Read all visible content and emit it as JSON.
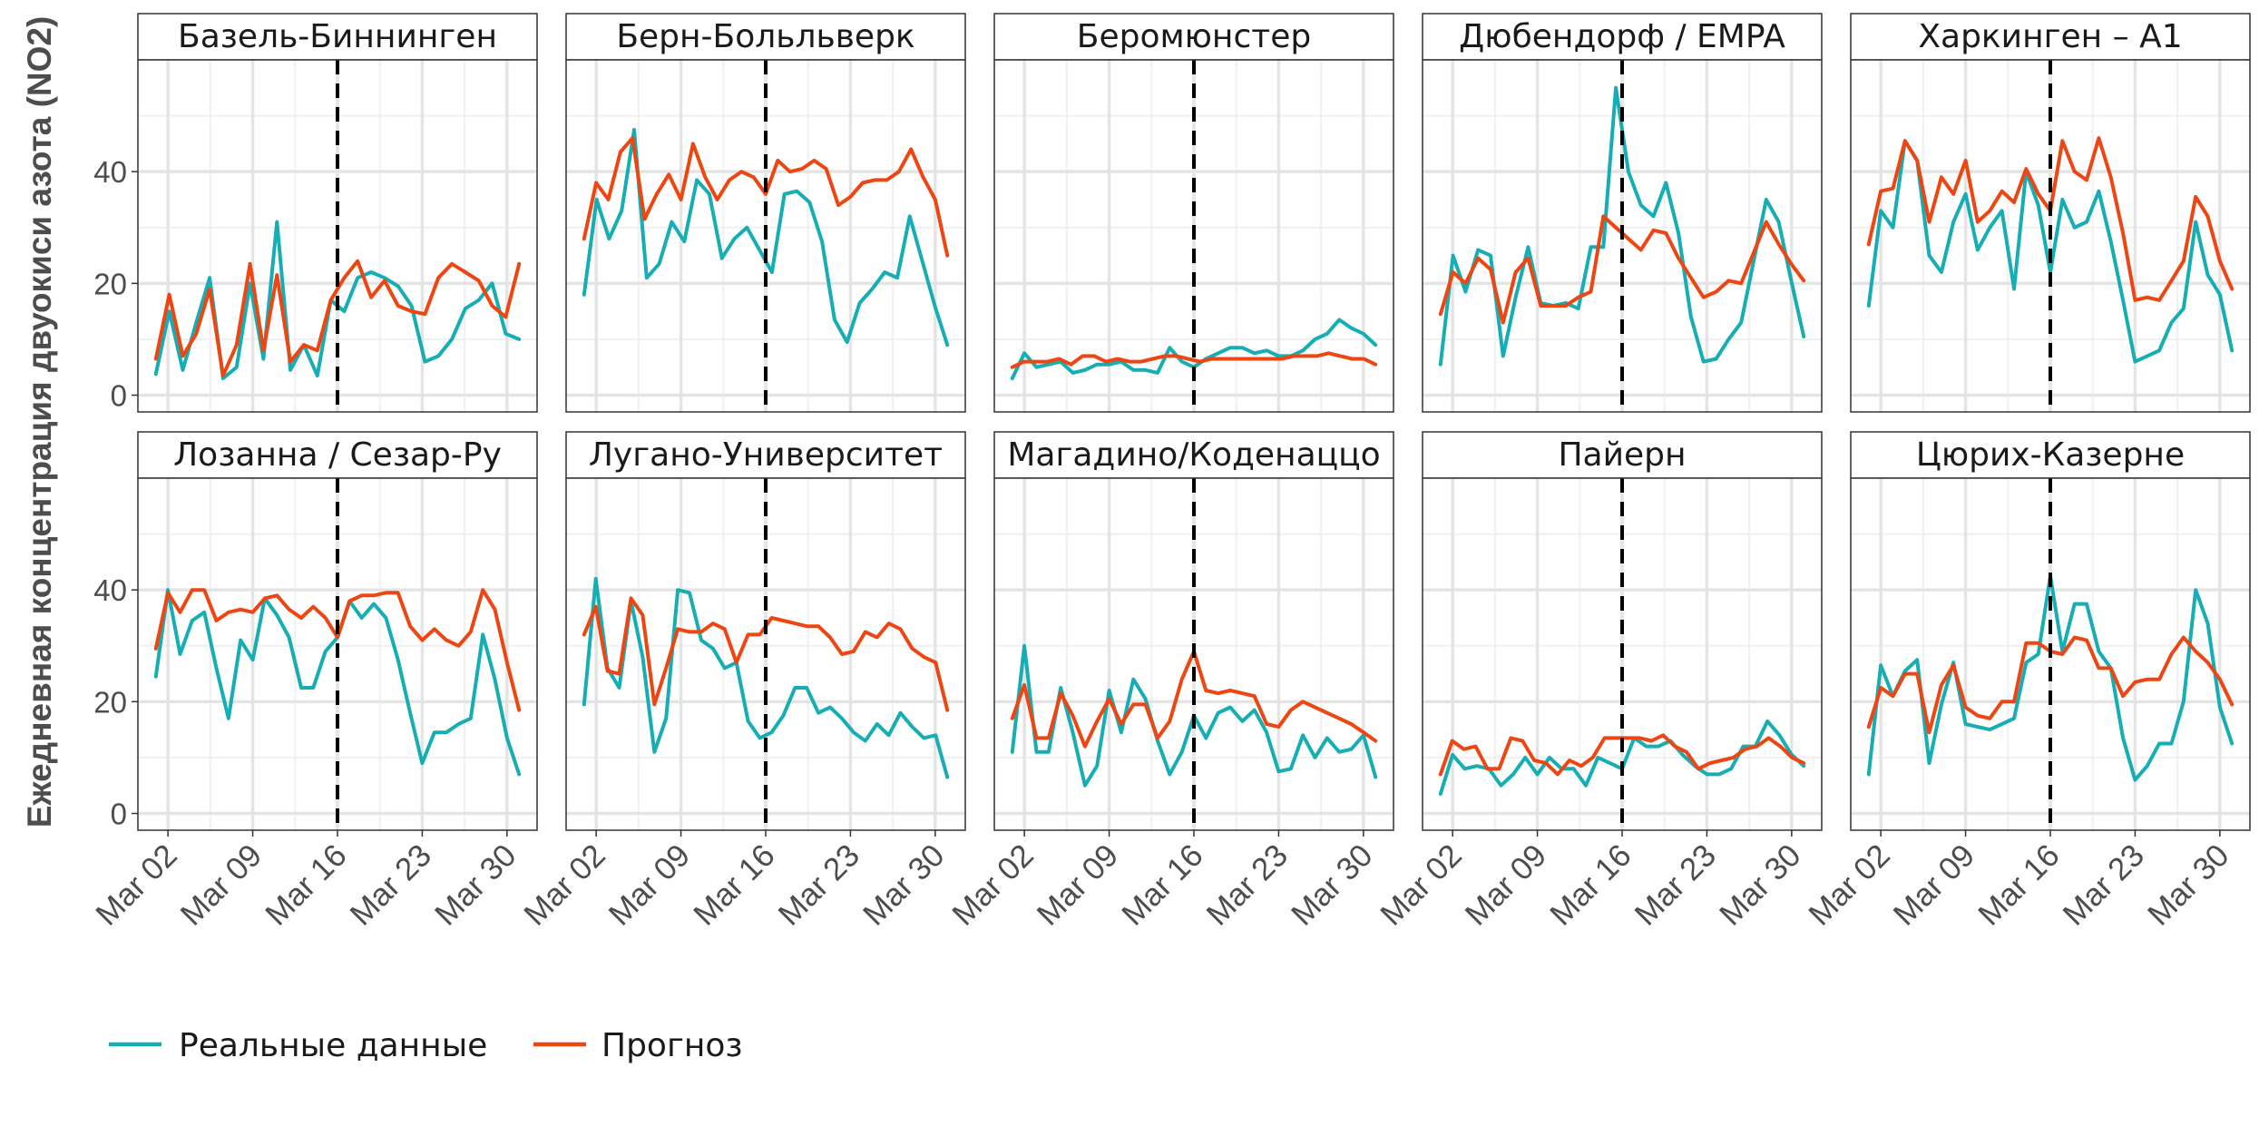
{
  "chart_data": {
    "type": "line",
    "ylabel": "Ежедневная концентрация двуокиси азота (NO2)",
    "xlabel": "",
    "x_dates": [
      "Mar 01",
      "Mar 02",
      "Mar 03",
      "Mar 04",
      "Mar 05",
      "Mar 06",
      "Mar 07",
      "Mar 08",
      "Mar 09",
      "Mar 10",
      "Mar 11",
      "Mar 12",
      "Mar 13",
      "Mar 14",
      "Mar 15",
      "Mar 16",
      "Mar 17",
      "Mar 18",
      "Mar 19",
      "Mar 20",
      "Mar 21",
      "Mar 22",
      "Mar 23",
      "Mar 24",
      "Mar 25",
      "Mar 26",
      "Mar 27",
      "Mar 28",
      "Mar 29",
      "Mar 30",
      "Mar 31"
    ],
    "x_ticks": [
      "Mar 02",
      "Mar 09",
      "Mar 16",
      "Mar 23",
      "Mar 30"
    ],
    "x_tick_index": [
      1,
      8,
      15,
      22,
      29
    ],
    "y_ticks": [
      0,
      20,
      40
    ],
    "ylim": [
      -3,
      60
    ],
    "vline_index": 15,
    "series_colors": {
      "actual": "#16aeb4",
      "forecast": "#ee4612"
    },
    "legend": [
      {
        "key": "actual",
        "label": "Реальные данные"
      },
      {
        "key": "forecast",
        "label": "Прогноз"
      }
    ],
    "panels": [
      {
        "title": "Базель-Биннинген",
        "actual": [
          3.8,
          15,
          4.5,
          13,
          21,
          3,
          5,
          20,
          6.5,
          31,
          4.5,
          9,
          3.5,
          17,
          15,
          21,
          22,
          21,
          19.5,
          16,
          6,
          7,
          10,
          15.5,
          17,
          20,
          11,
          10
        ],
        "forecast": [
          6.5,
          18,
          7,
          11,
          19,
          3.5,
          9,
          23.5,
          8,
          21.5,
          6,
          9,
          8,
          17,
          21,
          24,
          17.5,
          20.5,
          16,
          15,
          14.5,
          21,
          23.5,
          22,
          20.5,
          16,
          14,
          23.5
        ]
      },
      {
        "title": "Берн-Больльверк",
        "actual": [
          18,
          35,
          28,
          33,
          47.5,
          21,
          23.5,
          31,
          27.5,
          38.5,
          36,
          24.5,
          28,
          30,
          26,
          22,
          36,
          36.5,
          34.5,
          27.5,
          13.5,
          9.5,
          16.5,
          19,
          22,
          21,
          32,
          24,
          16,
          9
        ],
        "forecast": [
          28,
          38,
          35,
          43.5,
          46,
          31.5,
          36,
          39.5,
          35,
          45,
          39,
          35,
          38.5,
          40,
          39,
          36,
          42,
          40,
          40.5,
          42,
          40.5,
          34,
          35.5,
          38,
          38.5,
          38.5,
          40,
          44,
          39,
          35,
          25
        ]
      },
      {
        "title": "Беромюнстер",
        "actual": [
          3,
          7.5,
          5,
          5.5,
          6,
          4,
          4.5,
          5.5,
          5.5,
          6,
          4.5,
          4.5,
          4,
          8.5,
          6,
          5,
          6.5,
          7.5,
          8.5,
          8.5,
          7.5,
          8,
          7,
          7,
          8,
          10,
          11,
          13.5,
          12,
          11,
          9
        ],
        "forecast": [
          5,
          6,
          6,
          6,
          6.5,
          5.5,
          7,
          7,
          6,
          6.5,
          6,
          6,
          6.5,
          7,
          7,
          6.5,
          6,
          6.5,
          6.5,
          6.5,
          6.5,
          6.5,
          6.5,
          6.5,
          7,
          7,
          7,
          7.5,
          7,
          6.5,
          6.5,
          5.5
        ]
      },
      {
        "title": "Дюбендорф / EMPA",
        "actual": [
          5.5,
          25,
          18.5,
          26,
          25,
          7,
          17.5,
          26.5,
          16.5,
          16,
          16.5,
          15.5,
          26.5,
          26.5,
          55,
          40,
          34,
          32,
          38,
          29,
          14,
          6,
          6.5,
          10,
          13,
          24,
          35,
          31,
          20.5,
          10.5
        ],
        "forecast": [
          14.5,
          22,
          20,
          24.5,
          22.5,
          13,
          22,
          24.5,
          16,
          16,
          16,
          17.5,
          18.5,
          32,
          30,
          28,
          26,
          29.5,
          29,
          24.5,
          21,
          17.5,
          18.5,
          20.5,
          20,
          25.5,
          31,
          27,
          23.5,
          20.5
        ]
      },
      {
        "title": "Харкинген – A1",
        "actual": [
          16,
          33,
          30,
          45.5,
          42,
          25,
          22,
          31,
          36,
          26,
          30,
          33,
          19,
          40,
          34,
          22,
          35,
          30,
          31,
          36.5,
          27.5,
          17,
          6,
          7,
          8,
          13,
          15.5,
          31,
          21.5,
          18,
          8
        ],
        "forecast": [
          27,
          36.5,
          37,
          45.5,
          42,
          31,
          39,
          36,
          42,
          31,
          33,
          36.5,
          34.5,
          40.5,
          36,
          33,
          45.5,
          40,
          38.5,
          46,
          39,
          29,
          17,
          17.5,
          17,
          20.5,
          24,
          35.5,
          32,
          24,
          19
        ]
      },
      {
        "title": "Лозанна / Сезар-Ру",
        "actual": [
          24.5,
          40,
          28.5,
          34.5,
          36,
          26,
          17,
          31,
          27.5,
          38.5,
          35.5,
          31.5,
          22.5,
          22.5,
          29,
          31.5,
          38,
          35,
          37.5,
          35,
          27.5,
          18,
          9,
          14.5,
          14.5,
          16,
          17,
          32,
          24,
          13.5,
          7
        ],
        "forecast": [
          29.5,
          39.5,
          36,
          40,
          40,
          34.5,
          36,
          36.5,
          36,
          38.5,
          39,
          36.5,
          35,
          37,
          35,
          31.5,
          38,
          39,
          39,
          39.5,
          39.5,
          33.5,
          31,
          33,
          31,
          30,
          32.5,
          40,
          36.5,
          27,
          18.5
        ]
      },
      {
        "title": "Лугано-Университет",
        "actual": [
          19.5,
          42,
          26,
          22.5,
          38,
          28,
          11,
          17,
          40,
          39.5,
          31,
          29.5,
          26,
          27,
          16.5,
          13.5,
          14.5,
          17.5,
          22.5,
          22.5,
          18,
          19,
          17,
          14.5,
          13,
          16,
          14,
          18,
          15.5,
          13.5,
          14,
          6.5
        ],
        "forecast": [
          32,
          37,
          25.5,
          25,
          38.5,
          35.5,
          19.5,
          26,
          33,
          32.5,
          32.5,
          34,
          33,
          27,
          32,
          32,
          35,
          34.5,
          34,
          33.5,
          33.5,
          31.5,
          28.5,
          29,
          32.5,
          31.5,
          34,
          33,
          29.5,
          28,
          27,
          18.5
        ]
      },
      {
        "title": "Магадино/Коденаццо",
        "actual": [
          11,
          30,
          11,
          11,
          22.5,
          14.5,
          5,
          8.5,
          22,
          14.5,
          24,
          20.5,
          13,
          7,
          11,
          17.5,
          13.5,
          18,
          19,
          16.5,
          18.5,
          14.5,
          7.5,
          8,
          14,
          10,
          13.5,
          11,
          11.5,
          14,
          6.5
        ],
        "forecast": [
          17,
          23,
          13.5,
          13.5,
          21.5,
          17.5,
          12,
          16.5,
          20.5,
          16,
          19.5,
          19.5,
          13.5,
          16.5,
          24,
          29,
          22,
          21.5,
          22,
          21.5,
          21,
          16,
          15.5,
          18.5,
          20,
          19,
          18,
          17,
          16,
          14.5,
          13
        ]
      },
      {
        "title": "Пайерн",
        "actual": [
          3.5,
          10.5,
          8,
          8.5,
          8,
          5,
          7,
          10,
          7,
          10,
          8,
          8,
          5,
          10,
          9,
          8,
          13.5,
          12,
          12,
          13,
          10.5,
          8.5,
          7,
          7,
          8,
          12,
          12,
          16.5,
          14,
          10.5,
          8.5
        ],
        "forecast": [
          7,
          13,
          11.5,
          12,
          8,
          8,
          13.5,
          13,
          9.5,
          9,
          7,
          9.5,
          8.5,
          10,
          13.5,
          13.5,
          13.5,
          13.5,
          13,
          14,
          12,
          11,
          8,
          9,
          9.5,
          10,
          11.5,
          12,
          13.5,
          12,
          10,
          9
        ]
      },
      {
        "title": "Цюрих-Казерне",
        "actual": [
          7,
          26.5,
          21,
          25.5,
          27.5,
          9,
          19.5,
          27,
          16,
          15.5,
          15,
          16,
          17,
          27,
          28.5,
          42.5,
          29,
          37.5,
          37.5,
          29,
          26,
          13.5,
          6,
          8.5,
          12.5,
          12.5,
          20,
          40,
          34,
          19,
          12.5
        ],
        "forecast": [
          15.5,
          22.5,
          21,
          25,
          25,
          14.5,
          23,
          26.5,
          19,
          17.5,
          17,
          20,
          20,
          30.5,
          30.5,
          29,
          28.5,
          31.5,
          31,
          26,
          26,
          21,
          23.5,
          24,
          24,
          28.5,
          31.5,
          29,
          27,
          24,
          19.5
        ]
      }
    ]
  }
}
